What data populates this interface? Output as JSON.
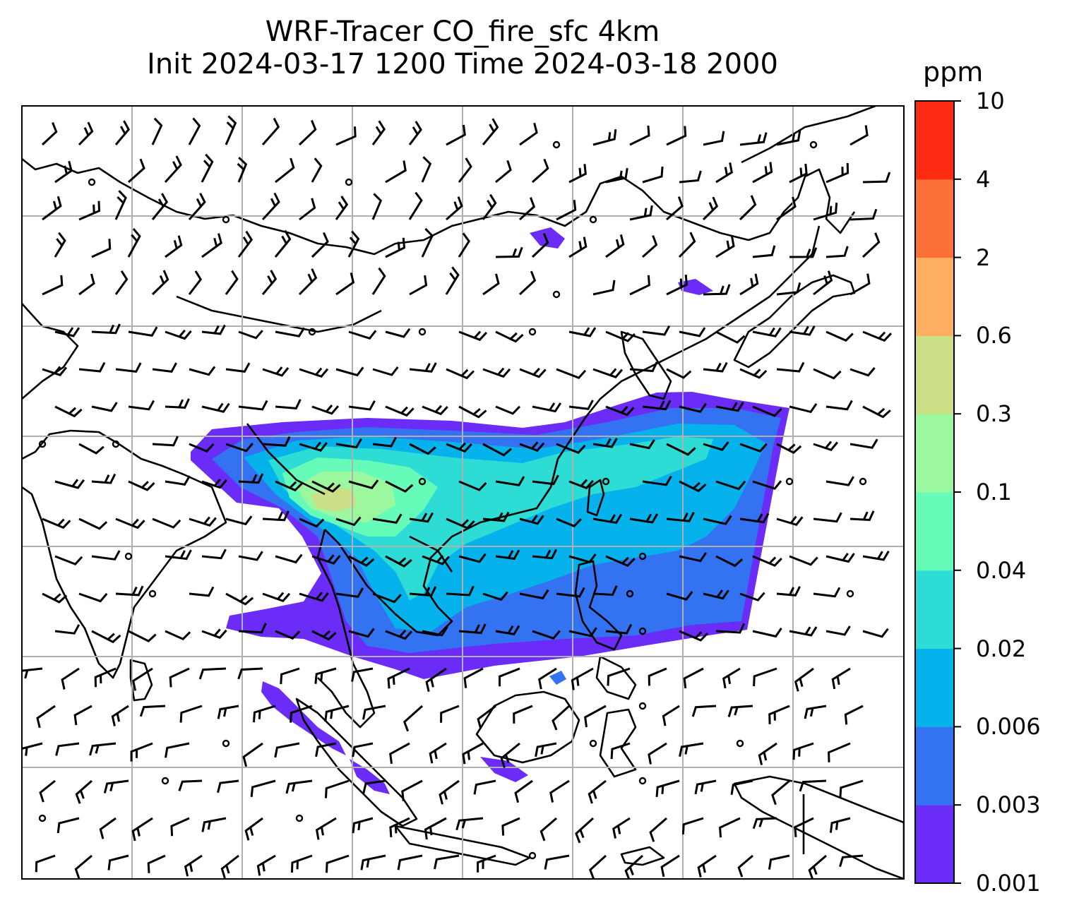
{
  "title": {
    "line1": "WRF-Tracer CO_fire_sfc 4km",
    "line2": "Init 2024-03-17 1200 Time 2024-03-18 2000"
  },
  "colorbar": {
    "unit": "ppm",
    "levels": [
      "0.001",
      "0.003",
      "0.006",
      "0.02",
      "0.04",
      "0.1",
      "0.3",
      "0.6",
      "2",
      "4",
      "10"
    ],
    "colors": [
      "#6a2cf6",
      "#3373f2",
      "#05b2eb",
      "#2edcd6",
      "#66fbb9",
      "#9bf89f",
      "#cbdf87",
      "#fdae62",
      "#fd7039",
      "#fe2b13"
    ]
  },
  "map": {
    "gridlines": "on",
    "plume_colors": {
      "lowest": "#6a2cf6",
      "low": "#3373f2",
      "mid": "#05b2eb",
      "midhigh": "#2edcd6",
      "high": "#66fbb9",
      "higher": "#9bf89f",
      "peak": "#cbdf87"
    },
    "coast_color": "#000000",
    "barb_color": "#000000"
  }
}
